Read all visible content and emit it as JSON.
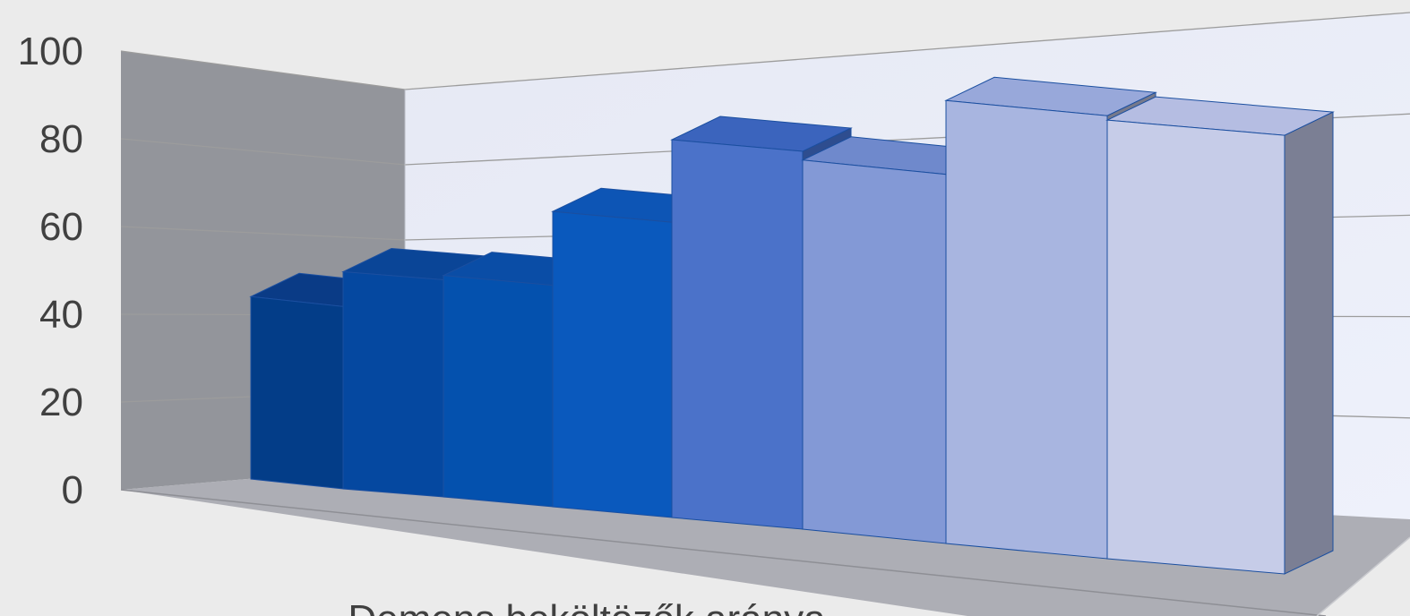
{
  "chart_data": {
    "type": "bar",
    "style": "3d-column",
    "categories": [
      "",
      "",
      "",
      "",
      "",
      "",
      "",
      ""
    ],
    "values": [
      42,
      50,
      51,
      68,
      87,
      85,
      102,
      101
    ],
    "xlabel": "Demens beköltözők aránya",
    "ylabel": "",
    "ylim": [
      0,
      100
    ],
    "yticks": [
      {
        "value": 0,
        "label": "0"
      },
      {
        "value": 20,
        "label": "20"
      },
      {
        "value": 40,
        "label": "40"
      },
      {
        "value": 60,
        "label": "60"
      },
      {
        "value": 80,
        "label": "80"
      },
      {
        "value": 100,
        "label": "100"
      }
    ],
    "grid": true,
    "legend": "none",
    "colors": {
      "background": "#ebebeb",
      "side_wall": "#93959b",
      "floor": "#adaeb5",
      "back_wall": "#e8ecf7",
      "gridline": "#9c9c9c",
      "outline": "#1b4fa0",
      "bar_fronts": [
        "#033d88",
        "#0548a0",
        "#0451ae",
        "#0a59bd",
        "#4b72c9",
        "#8399d6",
        "#a8b5e0",
        "#c6cce8"
      ],
      "bar_right_sides": [
        "#2a3f7e",
        "#2a3f7e",
        "#2a3f7e",
        "#2a3f7e",
        "#2e4d8f",
        "#2e4d8f",
        "#76798b",
        "#7b7f94"
      ],
      "bar_tops": [
        "#0a3b86",
        "#0a4597",
        "#0a4da6",
        "#0d55b5",
        "#3b64bd",
        "#6f89cc",
        "#98a8da",
        "#b5bde2"
      ]
    }
  }
}
